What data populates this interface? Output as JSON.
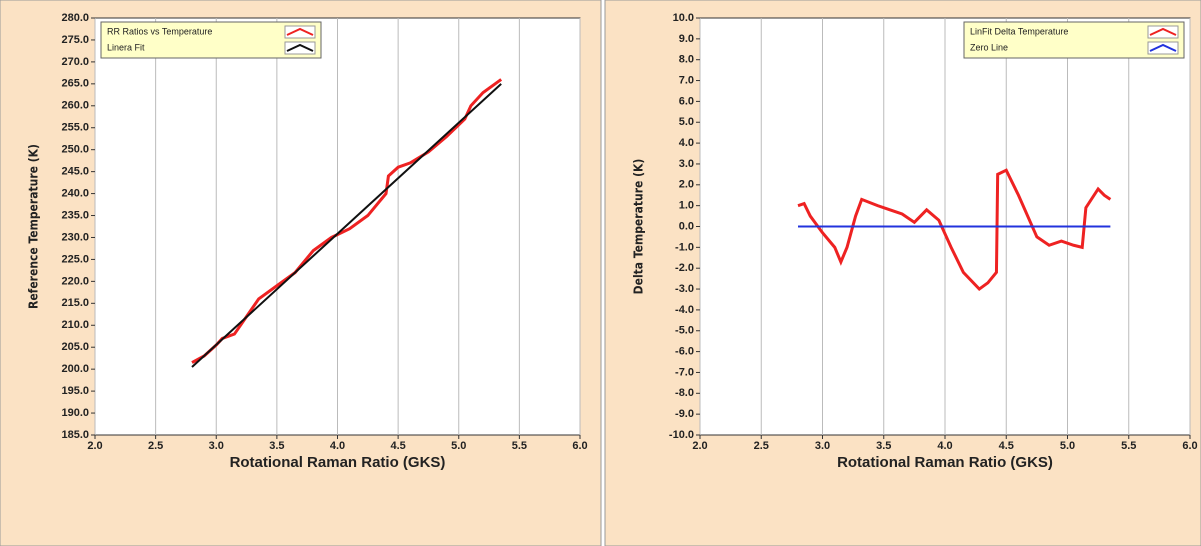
{
  "chart_data": [
    {
      "type": "line",
      "xlabel": "Rotational Raman Ratio (GKS)",
      "ylabel": "Reference Temperature (K)",
      "xlim": [
        2.0,
        6.0
      ],
      "xticks": [
        {
          "value": 2.0,
          "label": "2.0"
        },
        {
          "value": 2.5,
          "label": "2.5"
        },
        {
          "value": 3.0,
          "label": "3.0"
        },
        {
          "value": 3.5,
          "label": "3.5"
        },
        {
          "value": 4.0,
          "label": "4.0"
        },
        {
          "value": 4.5,
          "label": "4.5"
        },
        {
          "value": 5.0,
          "label": "5.0"
        },
        {
          "value": 5.5,
          "label": "5.5"
        },
        {
          "value": 6.0,
          "label": "6.0"
        }
      ],
      "ylim": [
        185,
        280
      ],
      "yticks": [
        {
          "value": 185,
          "label": "185.0"
        },
        {
          "value": 190,
          "label": "190.0"
        },
        {
          "value": 195,
          "label": "195.0"
        },
        {
          "value": 200,
          "label": "200.0"
        },
        {
          "value": 205,
          "label": "205.0"
        },
        {
          "value": 210,
          "label": "210.0"
        },
        {
          "value": 215,
          "label": "215.0"
        },
        {
          "value": 220,
          "label": "220.0"
        },
        {
          "value": 225,
          "label": "225.0"
        },
        {
          "value": 230,
          "label": "230.0"
        },
        {
          "value": 235,
          "label": "235.0"
        },
        {
          "value": 240,
          "label": "240.0"
        },
        {
          "value": 245,
          "label": "245.0"
        },
        {
          "value": 250,
          "label": "250.0"
        },
        {
          "value": 255,
          "label": "255.0"
        },
        {
          "value": 260,
          "label": "260.0"
        },
        {
          "value": 265,
          "label": "265.0"
        },
        {
          "value": 270,
          "label": "270.0"
        },
        {
          "value": 275,
          "label": "275.0"
        },
        {
          "value": 280,
          "label": "280.0"
        }
      ],
      "grid": true,
      "legend": "upper left",
      "series": [
        {
          "name": "RR Ratios vs Temperature",
          "color": "#ee2222",
          "x": [
            2.8,
            2.9,
            3.0,
            3.05,
            3.15,
            3.25,
            3.35,
            3.5,
            3.65,
            3.8,
            3.95,
            4.1,
            4.25,
            4.4,
            4.42,
            4.5,
            4.6,
            4.75,
            4.9,
            5.05,
            5.1,
            5.2,
            5.35
          ],
          "values": [
            201.5,
            203,
            205.5,
            207,
            208,
            212,
            216,
            219,
            222,
            227,
            230,
            232,
            235,
            240,
            244,
            246,
            247,
            249.5,
            253,
            257,
            260,
            263,
            266
          ]
        },
        {
          "name": "Linera Fit",
          "color": "#111111",
          "x": [
            2.8,
            5.35
          ],
          "values": [
            200.5,
            265
          ]
        }
      ]
    },
    {
      "type": "line",
      "xlabel": "Rotational Raman Ratio (GKS)",
      "ylabel": "Delta Temperature (K)",
      "xlim": [
        2.0,
        6.0
      ],
      "xticks": [
        {
          "value": 2.0,
          "label": "2.0"
        },
        {
          "value": 2.5,
          "label": "2.5"
        },
        {
          "value": 3.0,
          "label": "3.0"
        },
        {
          "value": 3.5,
          "label": "3.5"
        },
        {
          "value": 4.0,
          "label": "4.0"
        },
        {
          "value": 4.5,
          "label": "4.5"
        },
        {
          "value": 5.0,
          "label": "5.0"
        },
        {
          "value": 5.5,
          "label": "5.5"
        },
        {
          "value": 6.0,
          "label": "6.0"
        }
      ],
      "ylim": [
        -10,
        10
      ],
      "yticks": [
        {
          "value": -10,
          "label": "-10.0"
        },
        {
          "value": -9,
          "label": "-9.0"
        },
        {
          "value": -8,
          "label": "-8.0"
        },
        {
          "value": -7,
          "label": "-7.0"
        },
        {
          "value": -6,
          "label": "-6.0"
        },
        {
          "value": -5,
          "label": "-5.0"
        },
        {
          "value": -4,
          "label": "-4.0"
        },
        {
          "value": -3,
          "label": "-3.0"
        },
        {
          "value": -2,
          "label": "-2.0"
        },
        {
          "value": -1,
          "label": "-1.0"
        },
        {
          "value": 0,
          "label": "0.0"
        },
        {
          "value": 1,
          "label": "1.0"
        },
        {
          "value": 2,
          "label": "2.0"
        },
        {
          "value": 3,
          "label": "3.0"
        },
        {
          "value": 4,
          "label": "4.0"
        },
        {
          "value": 5,
          "label": "5.0"
        },
        {
          "value": 6,
          "label": "6.0"
        },
        {
          "value": 7,
          "label": "7.0"
        },
        {
          "value": 8,
          "label": "8.0"
        },
        {
          "value": 9,
          "label": "9.0"
        },
        {
          "value": 10,
          "label": "10.0"
        }
      ],
      "grid": true,
      "legend": "upper right",
      "series": [
        {
          "name": "LinFit Delta Temperature",
          "color": "#ee2222",
          "x": [
            2.8,
            2.85,
            2.9,
            3.0,
            3.1,
            3.15,
            3.2,
            3.27,
            3.32,
            3.45,
            3.55,
            3.65,
            3.75,
            3.85,
            3.95,
            4.05,
            4.15,
            4.28,
            4.35,
            4.42,
            4.43,
            4.5,
            4.6,
            4.75,
            4.85,
            4.95,
            5.05,
            5.12,
            5.15,
            5.25,
            5.3,
            5.35
          ],
          "values": [
            1.0,
            1.1,
            0.5,
            -0.3,
            -1.0,
            -1.7,
            -1.0,
            0.5,
            1.3,
            1.0,
            0.8,
            0.6,
            0.2,
            0.8,
            0.3,
            -1.0,
            -2.2,
            -3.0,
            -2.7,
            -2.2,
            2.5,
            2.7,
            1.5,
            -0.5,
            -0.9,
            -0.7,
            -0.9,
            -1.0,
            0.9,
            1.8,
            1.5,
            1.3
          ]
        },
        {
          "name": "Zero Line",
          "color": "#2233dd",
          "x": [
            2.8,
            5.35
          ],
          "values": [
            0,
            0
          ]
        }
      ]
    }
  ]
}
